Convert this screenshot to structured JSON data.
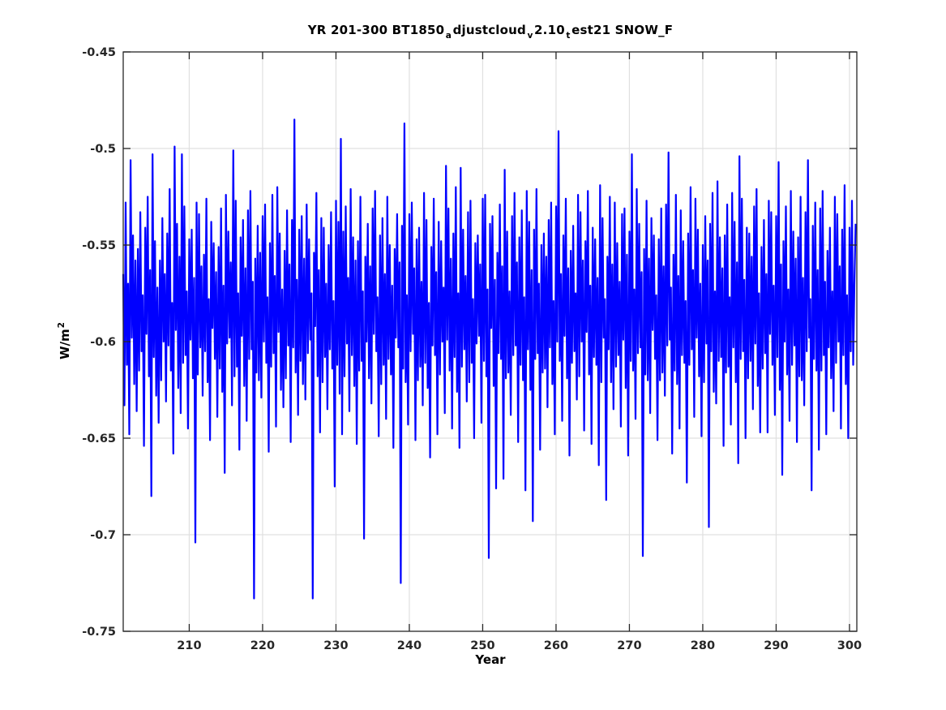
{
  "figure": {
    "background": "#ffffff"
  },
  "chart_data": {
    "type": "line",
    "title_plain": "YR 201-300 BT1850_adjustcloud_v2.10_test21 SNOW_F",
    "title_segments": [
      {
        "text": "YR 201-300 BT1850",
        "sub": false
      },
      {
        "text": "a",
        "sub": true
      },
      {
        "text": "djustcloud",
        "sub": false
      },
      {
        "text": "v",
        "sub": true
      },
      {
        "text": "2.10",
        "sub": false
      },
      {
        "text": "t",
        "sub": true
      },
      {
        "text": "est21 SNOW_F",
        "sub": false
      }
    ],
    "xlabel": "Year",
    "ylabel_base": "W/m",
    "ylabel_exponent": "2",
    "xlim": [
      201,
      301
    ],
    "ylim": [
      -0.75,
      -0.45
    ],
    "xticks": [
      210,
      220,
      230,
      240,
      250,
      260,
      270,
      280,
      290,
      300
    ],
    "yticks": [
      -0.75,
      -0.7,
      -0.65,
      -0.6,
      -0.55,
      -0.5,
      -0.45
    ],
    "ytick_labels": [
      "-0.75",
      "-0.7",
      "-0.65",
      "-0.6",
      "-0.55",
      "-0.5",
      "-0.45"
    ],
    "grid": true,
    "legend": "none",
    "colors": {
      "line": "#0000ff",
      "grid": "#e0e0e0",
      "axis": "#262626",
      "tick_label": "#262626",
      "title": "#000000"
    },
    "series": [
      {
        "name": "SNOW_F",
        "x_start": 201,
        "x_step": 0.1666667,
        "values": [
          -0.565,
          -0.633,
          -0.528,
          -0.612,
          -0.57,
          -0.648,
          -0.506,
          -0.598,
          -0.545,
          -0.622,
          -0.558,
          -0.636,
          -0.552,
          -0.615,
          -0.533,
          -0.605,
          -0.576,
          -0.654,
          -0.541,
          -0.596,
          -0.525,
          -0.618,
          -0.563,
          -0.68,
          -0.503,
          -0.608,
          -0.548,
          -0.628,
          -0.572,
          -0.642,
          -0.558,
          -0.62,
          -0.536,
          -0.6,
          -0.565,
          -0.631,
          -0.544,
          -0.602,
          -0.521,
          -0.615,
          -0.58,
          -0.658,
          -0.499,
          -0.594,
          -0.539,
          -0.624,
          -0.556,
          -0.637,
          -0.503,
          -0.611,
          -0.53,
          -0.607,
          -0.574,
          -0.645,
          -0.547,
          -0.599,
          -0.542,
          -0.619,
          -0.567,
          -0.704,
          -0.528,
          -0.617,
          -0.534,
          -0.603,
          -0.561,
          -0.628,
          -0.555,
          -0.605,
          -0.526,
          -0.621,
          -0.578,
          -0.651,
          -0.538,
          -0.593,
          -0.549,
          -0.609,
          -0.564,
          -0.639,
          -0.551,
          -0.614,
          -0.531,
          -0.626,
          -0.571,
          -0.668,
          -0.524,
          -0.601,
          -0.543,
          -0.598,
          -0.559,
          -0.633,
          -0.501,
          -0.618,
          -0.527,
          -0.613,
          -0.575,
          -0.656,
          -0.546,
          -0.597,
          -0.537,
          -0.623,
          -0.562,
          -0.641,
          -0.532,
          -0.609,
          -0.522,
          -0.604,
          -0.569,
          -0.733,
          -0.557,
          -0.616,
          -0.54,
          -0.62,
          -0.554,
          -0.629,
          -0.535,
          -0.6,
          -0.529,
          -0.611,
          -0.577,
          -0.657,
          -0.549,
          -0.613,
          -0.524,
          -0.606,
          -0.566,
          -0.644,
          -0.52,
          -0.595,
          -0.544,
          -0.625,
          -0.573,
          -0.634,
          -0.553,
          -0.619,
          -0.532,
          -0.602,
          -0.56,
          -0.652,
          -0.537,
          -0.603,
          -0.485,
          -0.616,
          -0.568,
          -0.638,
          -0.542,
          -0.61,
          -0.535,
          -0.622,
          -0.557,
          -0.63,
          -0.529,
          -0.606,
          -0.547,
          -0.599,
          -0.575,
          -0.733,
          -0.554,
          -0.592,
          -0.523,
          -0.618,
          -0.563,
          -0.647,
          -0.536,
          -0.621,
          -0.541,
          -0.608,
          -0.57,
          -0.635,
          -0.55,
          -0.604,
          -0.533,
          -0.614,
          -0.579,
          -0.675,
          -0.527,
          -0.612,
          -0.538,
          -0.627,
          -0.495,
          -0.648,
          -0.543,
          -0.618,
          -0.53,
          -0.601,
          -0.567,
          -0.636,
          -0.521,
          -0.607,
          -0.546,
          -0.623,
          -0.558,
          -0.653,
          -0.548,
          -0.615,
          -0.525,
          -0.61,
          -0.574,
          -0.702,
          -0.556,
          -0.6,
          -0.539,
          -0.619,
          -0.561,
          -0.632,
          -0.531,
          -0.596,
          -0.522,
          -0.605,
          -0.577,
          -0.649,
          -0.545,
          -0.622,
          -0.536,
          -0.612,
          -0.565,
          -0.64,
          -0.525,
          -0.609,
          -0.55,
          -0.617,
          -0.571,
          -0.655,
          -0.552,
          -0.598,
          -0.534,
          -0.603,
          -0.559,
          -0.725,
          -0.54,
          -0.614,
          -0.487,
          -0.621,
          -0.576,
          -0.643,
          -0.534,
          -0.605,
          -0.528,
          -0.596,
          -0.562,
          -0.651,
          -0.547,
          -0.62,
          -0.541,
          -0.613,
          -0.569,
          -0.633,
          -0.523,
          -0.611,
          -0.537,
          -0.624,
          -0.58,
          -0.66,
          -0.551,
          -0.602,
          -0.526,
          -0.607,
          -0.564,
          -0.648,
          -0.538,
          -0.617,
          -0.548,
          -0.6,
          -0.572,
          -0.637,
          -0.509,
          -0.599,
          -0.531,
          -0.615,
          -0.557,
          -0.645,
          -0.544,
          -0.608,
          -0.52,
          -0.626,
          -0.575,
          -0.655,
          -0.51,
          -0.613,
          -0.542,
          -0.604,
          -0.566,
          -0.631,
          -0.533,
          -0.621,
          -0.527,
          -0.611,
          -0.578,
          -0.65,
          -0.549,
          -0.601,
          -0.545,
          -0.597,
          -0.56,
          -0.642,
          -0.526,
          -0.61,
          -0.524,
          -0.618,
          -0.573,
          -0.712,
          -0.539,
          -0.593,
          -0.535,
          -0.623,
          -0.568,
          -0.676,
          -0.554,
          -0.606,
          -0.529,
          -0.609,
          -0.561,
          -0.671,
          -0.511,
          -0.619,
          -0.543,
          -0.616,
          -0.574,
          -0.638,
          -0.535,
          -0.607,
          -0.523,
          -0.602,
          -0.559,
          -0.652,
          -0.546,
          -0.612,
          -0.532,
          -0.62,
          -0.577,
          -0.677,
          -0.522,
          -0.604,
          -0.538,
          -0.625,
          -0.563,
          -0.693,
          -0.542,
          -0.609,
          -0.521,
          -0.606,
          -0.57,
          -0.656,
          -0.55,
          -0.616,
          -0.544,
          -0.614,
          -0.556,
          -0.634,
          -0.537,
          -0.603,
          -0.528,
          -0.622,
          -0.579,
          -0.648,
          -0.53,
          -0.6,
          -0.491,
          -0.61,
          -0.565,
          -0.641,
          -0.545,
          -0.597,
          -0.526,
          -0.619,
          -0.562,
          -0.659,
          -0.553,
          -0.611,
          -0.54,
          -0.605,
          -0.575,
          -0.63,
          -0.524,
          -0.618,
          -0.533,
          -0.6,
          -0.558,
          -0.646,
          -0.548,
          -0.595,
          -0.522,
          -0.617,
          -0.571,
          -0.653,
          -0.541,
          -0.608,
          -0.547,
          -0.612,
          -0.567,
          -0.664,
          -0.519,
          -0.621,
          -0.536,
          -0.598,
          -0.578,
          -0.682,
          -0.556,
          -0.604,
          -0.525,
          -0.621,
          -0.56,
          -0.635,
          -0.528,
          -0.613,
          -0.549,
          -0.607,
          -0.569,
          -0.644,
          -0.534,
          -0.599,
          -0.531,
          -0.624,
          -0.555,
          -0.659,
          -0.543,
          -0.61,
          -0.503,
          -0.615,
          -0.573,
          -0.64,
          -0.521,
          -0.606,
          -0.539,
          -0.603,
          -0.564,
          -0.711,
          -0.552,
          -0.617,
          -0.527,
          -0.62,
          -0.557,
          -0.637,
          -0.536,
          -0.594,
          -0.545,
          -0.609,
          -0.576,
          -0.651,
          -0.547,
          -0.62,
          -0.531,
          -0.616,
          -0.561,
          -0.628,
          -0.529,
          -0.602,
          -0.502,
          -0.599,
          -0.572,
          -0.658,
          -0.555,
          -0.615,
          -0.524,
          -0.622,
          -0.566,
          -0.645,
          -0.532,
          -0.607,
          -0.548,
          -0.611,
          -0.579,
          -0.673,
          -0.544,
          -0.612,
          -0.52,
          -0.604,
          -0.563,
          -0.639,
          -0.526,
          -0.598,
          -0.542,
          -0.618,
          -0.57,
          -0.649,
          -0.55,
          -0.621,
          -0.535,
          -0.601,
          -0.558,
          -0.696,
          -0.539,
          -0.605,
          -0.523,
          -0.626,
          -0.574,
          -0.632,
          -0.517,
          -0.61,
          -0.546,
          -0.608,
          -0.562,
          -0.654,
          -0.545,
          -0.616,
          -0.529,
          -0.613,
          -0.577,
          -0.643,
          -0.523,
          -0.603,
          -0.538,
          -0.621,
          -0.559,
          -0.663,
          -0.504,
          -0.609,
          -0.526,
          -0.605,
          -0.568,
          -0.65,
          -0.541,
          -0.619,
          -0.544,
          -0.61,
          -0.556,
          -0.635,
          -0.53,
          -0.601,
          -0.521,
          -0.623,
          -0.575,
          -0.647,
          -0.551,
          -0.614,
          -0.537,
          -0.606,
          -0.565,
          -0.647,
          -0.527,
          -0.596,
          -0.533,
          -0.612,
          -0.571,
          -0.638,
          -0.535,
          -0.608,
          -0.507,
          -0.625,
          -0.56,
          -0.669,
          -0.548,
          -0.6,
          -0.53,
          -0.617,
          -0.573,
          -0.641,
          -0.522,
          -0.612,
          -0.543,
          -0.602,
          -0.557,
          -0.652,
          -0.546,
          -0.618,
          -0.525,
          -0.62,
          -0.567,
          -0.633,
          -0.533,
          -0.605,
          -0.506,
          -0.598,
          -0.578,
          -0.677,
          -0.54,
          -0.609,
          -0.528,
          -0.615,
          -0.563,
          -0.656,
          -0.531,
          -0.615,
          -0.522,
          -0.607,
          -0.569,
          -0.648,
          -0.553,
          -0.603,
          -0.541,
          -0.619,
          -0.574,
          -0.636,
          -0.525,
          -0.611,
          -0.534,
          -0.6,
          -0.561,
          -0.645,
          -0.542,
          -0.607,
          -0.519,
          -0.622,
          -0.576,
          -0.65,
          -0.541,
          -0.605,
          -0.527,
          -0.612,
          -0.57,
          -0.539
        ]
      }
    ]
  }
}
